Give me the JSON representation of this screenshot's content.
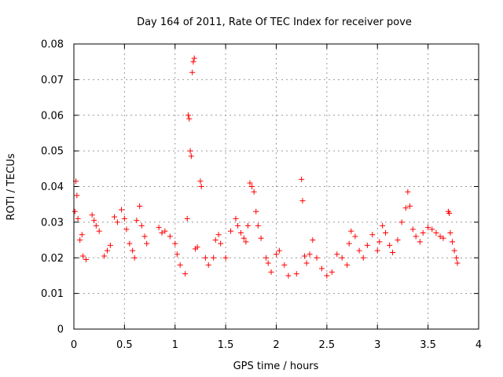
{
  "chart_data": {
    "type": "scatter",
    "title": "Day 164 of 2011, Rate Of TEC Index for receiver pove",
    "xlabel": "GPS time / hours",
    "ylabel": "ROTI / TECUs",
    "xlim": [
      0,
      4
    ],
    "ylim": [
      0,
      0.08
    ],
    "x_ticks": [
      "0",
      "0.5",
      "1",
      "1.5",
      "2",
      "2.5",
      "3",
      "3.5",
      "4"
    ],
    "y_ticks": [
      "0",
      "0.01",
      "0.02",
      "0.03",
      "0.04",
      "0.05",
      "0.06",
      "0.07",
      "0.08"
    ],
    "marker": "+",
    "grid": true,
    "series": [
      {
        "name": "ROTI",
        "color": "#ff0000",
        "points": [
          [
            0.01,
            0.033
          ],
          [
            0.02,
            0.0415
          ],
          [
            0.03,
            0.0375
          ],
          [
            0.04,
            0.031
          ],
          [
            0.06,
            0.025
          ],
          [
            0.08,
            0.0265
          ],
          [
            0.09,
            0.0205
          ],
          [
            0.12,
            0.0195
          ],
          [
            0.18,
            0.032
          ],
          [
            0.2,
            0.0305
          ],
          [
            0.22,
            0.029
          ],
          [
            0.25,
            0.0275
          ],
          [
            0.3,
            0.0205
          ],
          [
            0.33,
            0.022
          ],
          [
            0.36,
            0.0235
          ],
          [
            0.4,
            0.0315
          ],
          [
            0.43,
            0.03
          ],
          [
            0.47,
            0.0335
          ],
          [
            0.5,
            0.031
          ],
          [
            0.52,
            0.028
          ],
          [
            0.55,
            0.024
          ],
          [
            0.58,
            0.022
          ],
          [
            0.6,
            0.02
          ],
          [
            0.62,
            0.0305
          ],
          [
            0.65,
            0.0345
          ],
          [
            0.67,
            0.029
          ],
          [
            0.7,
            0.026
          ],
          [
            0.72,
            0.024
          ],
          [
            0.84,
            0.0285
          ],
          [
            0.87,
            0.027
          ],
          [
            0.9,
            0.0275
          ],
          [
            0.95,
            0.026
          ],
          [
            1.0,
            0.024
          ],
          [
            1.02,
            0.021
          ],
          [
            1.05,
            0.018
          ],
          [
            1.1,
            0.0155
          ],
          [
            1.12,
            0.031
          ],
          [
            1.13,
            0.06
          ],
          [
            1.14,
            0.059
          ],
          [
            1.15,
            0.05
          ],
          [
            1.16,
            0.0485
          ],
          [
            1.17,
            0.072
          ],
          [
            1.18,
            0.075
          ],
          [
            1.19,
            0.076
          ],
          [
            1.2,
            0.0225
          ],
          [
            1.22,
            0.023
          ],
          [
            1.25,
            0.0415
          ],
          [
            1.26,
            0.04
          ],
          [
            1.3,
            0.02
          ],
          [
            1.33,
            0.018
          ],
          [
            1.38,
            0.02
          ],
          [
            1.4,
            0.025
          ],
          [
            1.43,
            0.0265
          ],
          [
            1.45,
            0.024
          ],
          [
            1.5,
            0.02
          ],
          [
            1.55,
            0.0275
          ],
          [
            1.6,
            0.031
          ],
          [
            1.62,
            0.029
          ],
          [
            1.65,
            0.027
          ],
          [
            1.68,
            0.0255
          ],
          [
            1.7,
            0.0245
          ],
          [
            1.72,
            0.029
          ],
          [
            1.74,
            0.041
          ],
          [
            1.76,
            0.04
          ],
          [
            1.78,
            0.0385
          ],
          [
            1.8,
            0.033
          ],
          [
            1.82,
            0.029
          ],
          [
            1.85,
            0.0255
          ],
          [
            1.9,
            0.02
          ],
          [
            1.92,
            0.0185
          ],
          [
            1.95,
            0.016
          ],
          [
            2.0,
            0.021
          ],
          [
            2.03,
            0.022
          ],
          [
            2.08,
            0.018
          ],
          [
            2.12,
            0.015
          ],
          [
            2.2,
            0.0155
          ],
          [
            2.25,
            0.042
          ],
          [
            2.26,
            0.036
          ],
          [
            2.28,
            0.0205
          ],
          [
            2.3,
            0.0185
          ],
          [
            2.33,
            0.021
          ],
          [
            2.36,
            0.025
          ],
          [
            2.4,
            0.02
          ],
          [
            2.45,
            0.017
          ],
          [
            2.5,
            0.015
          ],
          [
            2.55,
            0.016
          ],
          [
            2.6,
            0.021
          ],
          [
            2.65,
            0.02
          ],
          [
            2.7,
            0.018
          ],
          [
            2.72,
            0.024
          ],
          [
            2.74,
            0.0275
          ],
          [
            2.78,
            0.026
          ],
          [
            2.82,
            0.022
          ],
          [
            2.86,
            0.02
          ],
          [
            2.9,
            0.0235
          ],
          [
            2.95,
            0.0265
          ],
          [
            3.0,
            0.022
          ],
          [
            3.02,
            0.0245
          ],
          [
            3.05,
            0.029
          ],
          [
            3.08,
            0.027
          ],
          [
            3.12,
            0.0235
          ],
          [
            3.15,
            0.0215
          ],
          [
            3.2,
            0.025
          ],
          [
            3.24,
            0.03
          ],
          [
            3.28,
            0.034
          ],
          [
            3.3,
            0.0385
          ],
          [
            3.32,
            0.0345
          ],
          [
            3.35,
            0.028
          ],
          [
            3.38,
            0.026
          ],
          [
            3.42,
            0.0245
          ],
          [
            3.45,
            0.027
          ],
          [
            3.5,
            0.0285
          ],
          [
            3.54,
            0.028
          ],
          [
            3.58,
            0.027
          ],
          [
            3.62,
            0.026
          ],
          [
            3.65,
            0.0255
          ],
          [
            3.7,
            0.033
          ],
          [
            3.71,
            0.0325
          ],
          [
            3.72,
            0.027
          ],
          [
            3.74,
            0.0245
          ],
          [
            3.76,
            0.022
          ],
          [
            3.78,
            0.02
          ],
          [
            3.79,
            0.0185
          ]
        ]
      }
    ]
  }
}
